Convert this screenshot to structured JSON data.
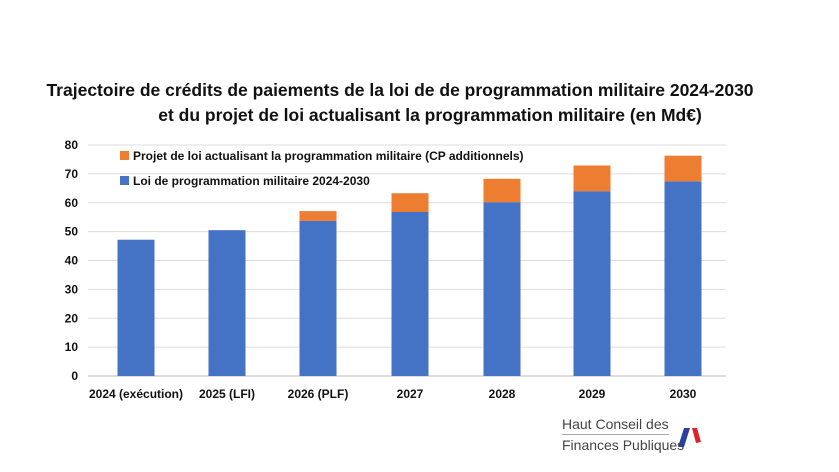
{
  "chart_data": {
    "type": "bar",
    "stacked": true,
    "title": "Trajectoire de crédits de paiements de la loi de de programmation militaire 2024-2030",
    "subtitle": "et du projet de loi actualisant la programmation militaire (en Md€)",
    "xlabel": "",
    "ylabel": "",
    "ylim": [
      0,
      80
    ],
    "yticks": [
      0,
      10,
      20,
      30,
      40,
      50,
      60,
      70,
      80
    ],
    "grid": true,
    "legend_position": "top-left",
    "categories": [
      "2024 (exécution)",
      "2025 (LFI)",
      "2026 (PLF)",
      "2027",
      "2028",
      "2029",
      "2030"
    ],
    "series": [
      {
        "name": "Loi de programmation militaire 2024-2030",
        "color": "#4472C4",
        "values": [
          47.2,
          50.5,
          53.7,
          56.8,
          60.2,
          64.0,
          67.4
        ]
      },
      {
        "name": "Projet de loi actualisant la programmation militaire (CP additionnels)",
        "color": "#ED7D31",
        "values": [
          0,
          0,
          3.4,
          6.5,
          8.1,
          8.9,
          8.9
        ]
      }
    ]
  },
  "logo": {
    "line1": "Haut Conseil des",
    "line2": "Finances Publiques"
  }
}
